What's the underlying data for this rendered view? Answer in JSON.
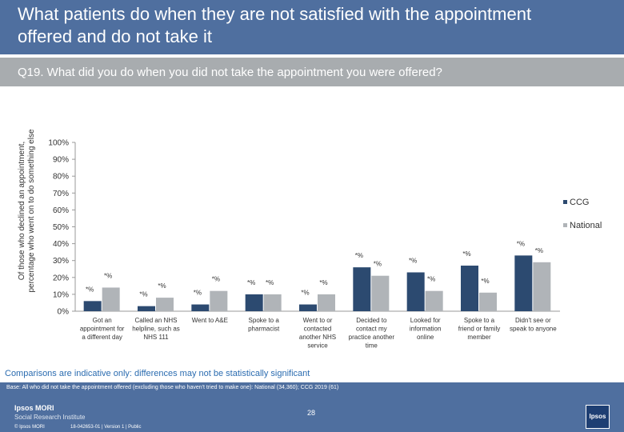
{
  "header": {
    "title": "What patients do when they are not satisfied with the appointment offered and do not take it",
    "question": "Q19. What did you do when you did not take the appointment you were offered?"
  },
  "colors": {
    "ccg": "#2c4a70",
    "national": "#b0b4b8",
    "header_bg": "#4f6f9f",
    "subtitle_bg": "#a8acaf",
    "note": "#2b6cb0"
  },
  "chart_data": {
    "type": "bar",
    "ylabel": "Of those who declined an appointment, percentage who went on to do something else",
    "ylim": [
      0,
      100
    ],
    "yticks": [
      "0%",
      "10%",
      "20%",
      "30%",
      "40%",
      "50%",
      "60%",
      "70%",
      "80%",
      "90%",
      "100%"
    ],
    "legend_position": "right",
    "categories": [
      [
        "Got an",
        "appointment for",
        "a different day"
      ],
      [
        "Called an NHS",
        "helpline, such as",
        "NHS 111"
      ],
      [
        "Went to A&E"
      ],
      [
        "Spoke to a",
        "pharmacist"
      ],
      [
        "Went to or",
        "contacted",
        "another NHS",
        "service"
      ],
      [
        "Decided to",
        "contact my",
        "practice another",
        "time"
      ],
      [
        "Looked for",
        "information",
        "online"
      ],
      [
        "Spoke to a",
        "friend or family",
        "member"
      ],
      [
        "Didn't see or",
        "speak to anyone"
      ]
    ],
    "series": [
      {
        "name": "CCG",
        "values": [
          6,
          3,
          4,
          10,
          4,
          26,
          23,
          27,
          33
        ],
        "labels": [
          "*%",
          "*%",
          "*%",
          "*%",
          "*%",
          "*%",
          "*%",
          "*%",
          "*%"
        ]
      },
      {
        "name": "National",
        "values": [
          14,
          8,
          12,
          10,
          10,
          21,
          12,
          11,
          29
        ],
        "labels": [
          "*%",
          "*%",
          "*%",
          "*%",
          "*%",
          "*%",
          "*%",
          "*%",
          "*%"
        ]
      }
    ]
  },
  "note": "Comparisons are indicative only: differences may not be statistically significant",
  "footer": {
    "base": "Base: All who did not take the appointment offered (excluding those who haven't tried to make one): National (34,360); CCG 2019 (61)",
    "brand_name": "Ipsos MORI",
    "brand_sub": "Social Research Institute",
    "copyright": "© Ipsos MORI",
    "version": "18-042653-01 | Version 1 | Public",
    "page_number": "28",
    "logo_text": "Ipsos"
  }
}
